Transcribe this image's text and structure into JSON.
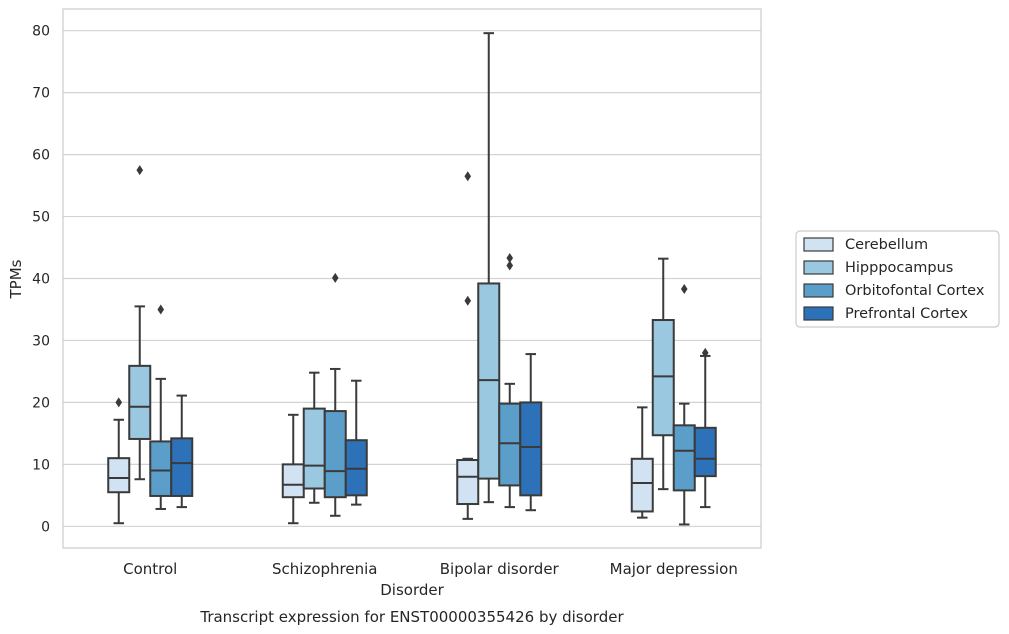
{
  "chart_data": {
    "type": "box",
    "title": "",
    "caption": "Transcript expression for ENST00000355426 by disorder",
    "xlabel": "Disorder",
    "ylabel": "TPMs",
    "ylim": [
      -3.5,
      83.5
    ],
    "yticks": [
      0,
      10,
      20,
      30,
      40,
      50,
      60,
      70,
      80
    ],
    "grid": "horizontal",
    "legend_position": "right",
    "categories": [
      "Control",
      "Schizophrenia",
      "Bipolar disorder",
      "Major depression"
    ],
    "series": [
      {
        "name": "Cerebellum",
        "color": "#d1e2f2",
        "boxes": [
          {
            "whisker_low": 0.5,
            "q1": 5.5,
            "median": 7.8,
            "q3": 11.0,
            "whisker_high": 17.2,
            "outliers": [
              20.0
            ]
          },
          {
            "whisker_low": 0.5,
            "q1": 4.7,
            "median": 6.7,
            "q3": 10.0,
            "whisker_high": 18.0,
            "outliers": []
          },
          {
            "whisker_low": 1.2,
            "q1": 3.6,
            "median": 8.0,
            "q3": 10.7,
            "whisker_high": 10.9,
            "outliers": [
              36.4,
              56.5
            ]
          },
          {
            "whisker_low": 1.4,
            "q1": 2.4,
            "median": 7.0,
            "q3": 10.9,
            "whisker_high": 19.2,
            "outliers": []
          }
        ]
      },
      {
        "name": "Hipppocampus",
        "color": "#9ac8e0",
        "boxes": [
          {
            "whisker_low": 7.6,
            "q1": 14.1,
            "median": 19.3,
            "q3": 25.9,
            "whisker_high": 35.5,
            "outliers": [
              57.5
            ]
          },
          {
            "whisker_low": 3.8,
            "q1": 6.1,
            "median": 9.8,
            "q3": 19.0,
            "whisker_high": 24.8,
            "outliers": []
          },
          {
            "whisker_low": 3.9,
            "q1": 7.7,
            "median": 23.6,
            "q3": 39.2,
            "whisker_high": 79.6,
            "outliers": []
          },
          {
            "whisker_low": 6.0,
            "q1": 14.7,
            "median": 24.2,
            "q3": 33.3,
            "whisker_high": 43.2,
            "outliers": []
          }
        ]
      },
      {
        "name": "Orbitofontal Cortex",
        "color": "#5a9ec9",
        "boxes": [
          {
            "whisker_low": 2.8,
            "q1": 4.9,
            "median": 9.0,
            "q3": 13.7,
            "whisker_high": 23.8,
            "outliers": [
              35.0
            ]
          },
          {
            "whisker_low": 1.7,
            "q1": 4.7,
            "median": 8.9,
            "q3": 18.6,
            "whisker_high": 25.4,
            "outliers": [
              40.1
            ]
          },
          {
            "whisker_low": 3.1,
            "q1": 6.6,
            "median": 13.4,
            "q3": 19.8,
            "whisker_high": 23.0,
            "outliers": [
              42.1,
              43.3
            ]
          },
          {
            "whisker_low": 0.3,
            "q1": 5.8,
            "median": 12.2,
            "q3": 16.3,
            "whisker_high": 19.8,
            "outliers": [
              38.3
            ]
          }
        ]
      },
      {
        "name": "Prefrontal Cortex",
        "color": "#2d72b8",
        "boxes": [
          {
            "whisker_low": 3.1,
            "q1": 4.9,
            "median": 10.2,
            "q3": 14.2,
            "whisker_high": 21.1,
            "outliers": []
          },
          {
            "whisker_low": 3.5,
            "q1": 5.0,
            "median": 9.3,
            "q3": 13.9,
            "whisker_high": 23.5,
            "outliers": []
          },
          {
            "whisker_low": 2.6,
            "q1": 5.0,
            "median": 12.8,
            "q3": 20.0,
            "whisker_high": 27.8,
            "outliers": []
          },
          {
            "whisker_low": 3.1,
            "q1": 8.1,
            "median": 10.9,
            "q3": 15.9,
            "whisker_high": 27.5,
            "outliers": [
              28.0
            ]
          }
        ]
      }
    ]
  }
}
